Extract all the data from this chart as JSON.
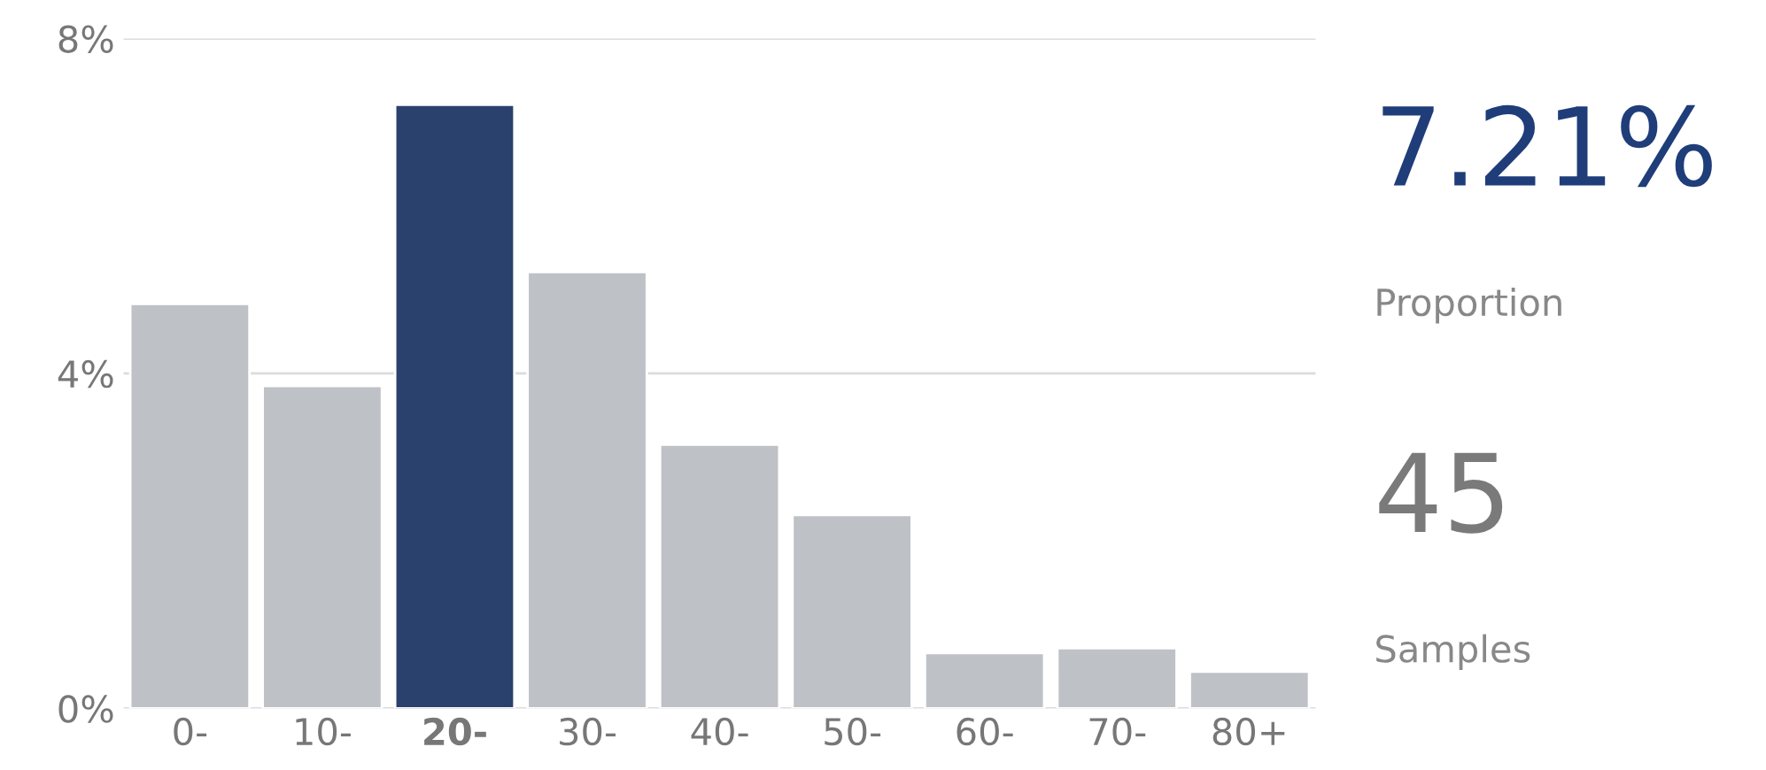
{
  "chart_data": {
    "type": "bar",
    "categories": [
      "0-",
      "10-",
      "20-",
      "30-",
      "40-",
      "50-",
      "60-",
      "70-",
      "80+"
    ],
    "values": [
      4.83,
      3.85,
      7.21,
      5.21,
      3.15,
      2.31,
      0.66,
      0.72,
      0.44
    ],
    "colors": [
      "#bdc2c7",
      "#bdc2c7",
      "#1f3d79",
      "#bdc2c7",
      "#bdc2c7",
      "#bdc2c7",
      "#bdc2c7",
      "#bdc2c7",
      "#bdc2c7"
    ],
    "ylim": [
      0,
      8
    ],
    "yticks": [
      {
        "value": 0,
        "label": "0%"
      },
      {
        "value": 4,
        "label": "4%"
      },
      {
        "value": 8,
        "label": "8%"
      }
    ],
    "grid": "y",
    "annotations": [
      "7.21%",
      "Proportion",
      "45",
      "Samples"
    ]
  }
}
